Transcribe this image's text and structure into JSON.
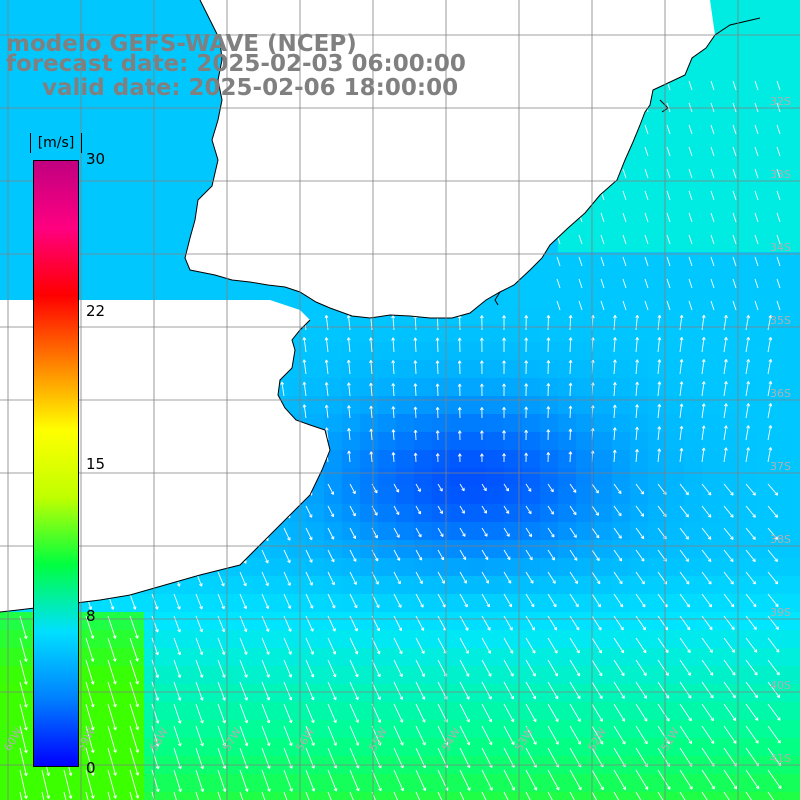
{
  "title": {
    "line1": "modelo GEFS-WAVE (NCEP)",
    "line2": "forecast date: 2025-02-03 06:00:00",
    "line3": "valid date: 2025-02-06 18:00:00"
  },
  "colorbar": {
    "units": "[m/s]",
    "ticks": [
      "30",
      "22",
      "15",
      "8",
      "0"
    ],
    "stops": [
      "#0000ff",
      "#0080ff",
      "#00e0ff",
      "#00ff40",
      "#c0ff00",
      "#ffff00",
      "#ff8000",
      "#ff0000",
      "#ff0080",
      "#c00080"
    ]
  },
  "grid": {
    "lat_labels": [
      "32S",
      "33S",
      "34S",
      "35S",
      "36S",
      "37S",
      "38S",
      "39S",
      "40S",
      "41S"
    ],
    "lon_labels": [
      "60W",
      "59W",
      "58W",
      "57W",
      "56W",
      "55W",
      "54W",
      "53W",
      "52W",
      "51W"
    ]
  },
  "colors": {
    "land": "#ffffff",
    "coast": "#000000",
    "grid": "#808080",
    "arrow": "#ffffff"
  }
}
